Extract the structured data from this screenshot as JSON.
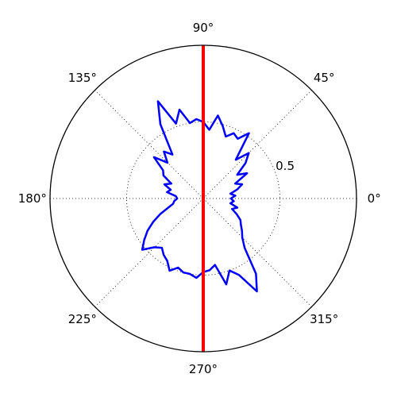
{
  "chart_data": {
    "type": "line",
    "projection": "polar",
    "theta_unit": "degrees",
    "theta_direction": "counterclockwise",
    "theta_zero": "right",
    "rlim": [
      0,
      1.0
    ],
    "radial_ticks": [
      {
        "value": 0.5,
        "label": "0.5"
      }
    ],
    "angular_ticks": [
      {
        "value": 0,
        "label": "0°"
      },
      {
        "value": 45,
        "label": "45°"
      },
      {
        "value": 90,
        "label": "90°"
      },
      {
        "value": 135,
        "label": "135°"
      },
      {
        "value": 180,
        "label": "180°"
      },
      {
        "value": 225,
        "label": "225°"
      },
      {
        "value": 270,
        "label": "270°"
      },
      {
        "value": 315,
        "label": "315°"
      }
    ],
    "grid": true,
    "series": [
      {
        "color": "#0000ff",
        "closed": true,
        "theta": [
          0,
          5,
          10,
          15,
          20,
          25,
          30,
          35,
          40,
          45,
          50,
          55,
          60,
          65,
          70,
          75,
          80,
          85,
          90,
          95,
          100,
          105,
          110,
          115,
          120,
          125,
          130,
          135,
          140,
          145,
          150,
          155,
          160,
          165,
          170,
          175,
          180,
          185,
          190,
          195,
          200,
          205,
          210,
          215,
          220,
          225,
          230,
          235,
          240,
          245,
          250,
          255,
          260,
          265,
          270,
          275,
          280,
          285,
          290,
          295,
          300,
          305,
          310,
          315,
          320,
          325,
          330,
          335,
          340,
          345,
          350,
          355
        ],
        "r": [
          0.18,
          0.21,
          0.18,
          0.23,
          0.27,
          0.23,
          0.33,
          0.27,
          0.36,
          0.42,
          0.33,
          0.52,
          0.45,
          0.47,
          0.43,
          0.49,
          0.55,
          0.45,
          0.5,
          0.52,
          0.5,
          0.6,
          0.52,
          0.7,
          0.56,
          0.35,
          0.4,
          0.33,
          0.42,
          0.32,
          0.3,
          0.23,
          0.27,
          0.22,
          0.24,
          0.18,
          0.17,
          0.19,
          0.2,
          0.24,
          0.3,
          0.36,
          0.42,
          0.47,
          0.52,
          0.45,
          0.42,
          0.45,
          0.47,
          0.52,
          0.48,
          0.5,
          0.5,
          0.52,
          0.48,
          0.47,
          0.44,
          0.58,
          0.5,
          0.55,
          0.7,
          0.6,
          0.42,
          0.36,
          0.33,
          0.3,
          0.28,
          0.24,
          0.2,
          0.23,
          0.18,
          0.2
        ]
      },
      {
        "color": "#ff0000",
        "theta": [
          90,
          270
        ],
        "r": [
          1.0,
          1.0
        ]
      }
    ]
  }
}
